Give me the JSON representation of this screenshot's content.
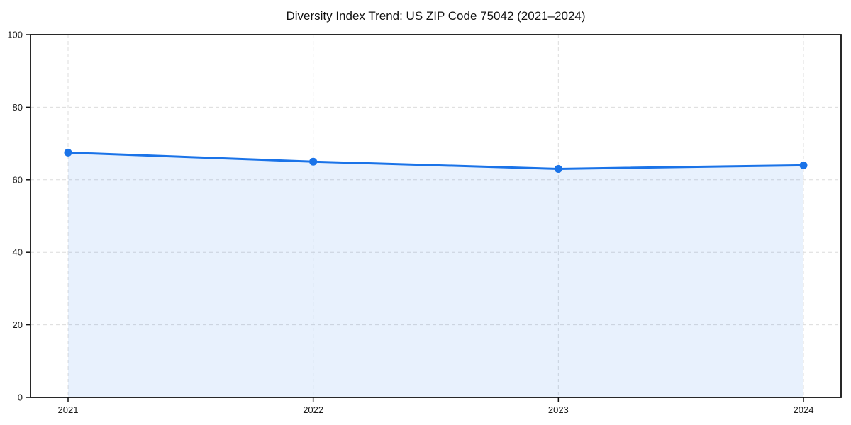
{
  "chart_data": {
    "type": "line",
    "title": "Diversity Index Trend: US ZIP Code 75042 (2021–2024)",
    "x": [
      "2021",
      "2022",
      "2023",
      "2024"
    ],
    "series": [
      {
        "name": "Diversity Index",
        "values": [
          67.5,
          65,
          63,
          64
        ]
      }
    ],
    "xlabel": "",
    "ylabel": "",
    "ylim": [
      0,
      100
    ],
    "yticks": [
      0,
      20,
      40,
      60,
      80,
      100
    ],
    "grid": true,
    "grid_style": "dashed",
    "legend": "none",
    "marker": "circle",
    "colors": {
      "line": "#1a73e8",
      "marker": "#1a73e8",
      "fill": "rgba(26,115,232,0.10)",
      "grid": "#dcdcdc",
      "spine": "#111111",
      "tick_label": "#1a1a1a",
      "title": "#111111",
      "background": "#ffffff"
    }
  }
}
